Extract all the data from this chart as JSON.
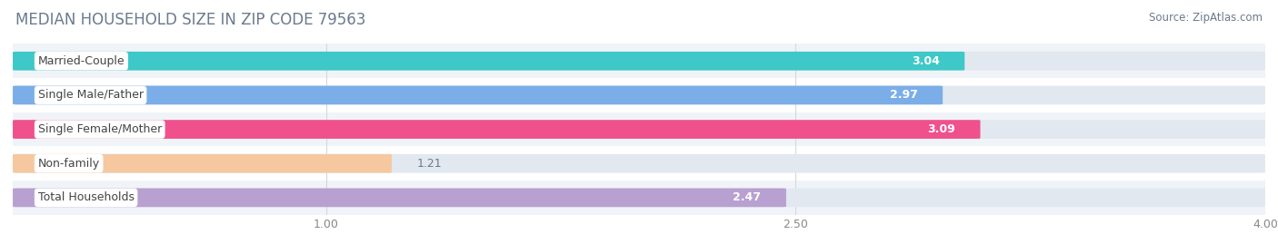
{
  "title": "MEDIAN HOUSEHOLD SIZE IN ZIP CODE 79563",
  "source": "Source: ZipAtlas.com",
  "categories": [
    "Married-Couple",
    "Single Male/Father",
    "Single Female/Mother",
    "Non-family",
    "Total Households"
  ],
  "values": [
    3.04,
    2.97,
    3.09,
    1.21,
    2.47
  ],
  "bar_colors": [
    "#3ec8c8",
    "#7baee8",
    "#f0508c",
    "#f5c8a0",
    "#b8a0d0"
  ],
  "xlim_min": 0.0,
  "xlim_max": 4.0,
  "xstart": 0.0,
  "xticks": [
    1.0,
    2.5,
    4.0
  ],
  "bar_height": 0.52,
  "row_bg_colors": [
    "#f0f4f8",
    "#ffffff"
  ],
  "bar_bg_color": "#e2e8f0",
  "label_bg_color": "#ffffff",
  "title_color": "#6b7a8d",
  "source_color": "#6b7a8d",
  "value_color_inside": "#ffffff",
  "value_color_outside": "#6b7a8d",
  "label_color": "#444444",
  "title_fontsize": 12,
  "source_fontsize": 8.5,
  "label_fontsize": 9,
  "value_fontsize": 9,
  "tick_fontsize": 9
}
